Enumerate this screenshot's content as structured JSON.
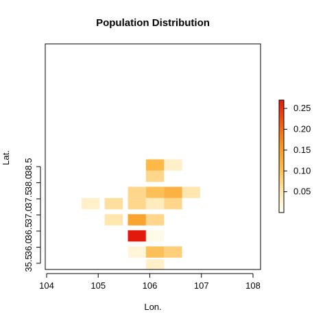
{
  "chart_data": {
    "type": "heatmap",
    "title": "Population Distribution",
    "xlabel": "Lon.",
    "ylabel": "Lat.",
    "xlim": [
      104,
      108
    ],
    "ylim": [
      35.45,
      38.85
    ],
    "x_ticks": [
      "104",
      "105",
      "106",
      "107",
      "108"
    ],
    "y_ticks": [
      "35.5",
      "36.0",
      "36.5",
      "37.0",
      "37.5",
      "38.0",
      "38.5"
    ],
    "cell_size": {
      "lon": 0.35,
      "lat": 0.35
    },
    "cells": [
      {
        "lon": 104.85,
        "lat": 37.35,
        "value": 0.03
      },
      {
        "lon": 105.3,
        "lat": 37.35,
        "value": 0.06
      },
      {
        "lon": 105.3,
        "lat": 36.85,
        "value": 0.05
      },
      {
        "lon": 105.75,
        "lat": 37.35,
        "value": 0.07
      },
      {
        "lon": 105.75,
        "lat": 37.7,
        "value": 0.07
      },
      {
        "lon": 105.75,
        "lat": 36.85,
        "value": 0.14
      },
      {
        "lon": 105.75,
        "lat": 36.35,
        "value": 0.27
      },
      {
        "lon": 105.75,
        "lat": 35.85,
        "value": 0.02
      },
      {
        "lon": 106.1,
        "lat": 38.55,
        "value": 0.11
      },
      {
        "lon": 106.1,
        "lat": 38.2,
        "value": 0.07
      },
      {
        "lon": 106.1,
        "lat": 37.7,
        "value": 0.1
      },
      {
        "lon": 106.1,
        "lat": 37.35,
        "value": 0.04
      },
      {
        "lon": 106.1,
        "lat": 36.85,
        "value": 0.07
      },
      {
        "lon": 106.1,
        "lat": 36.35,
        "value": 0.01
      },
      {
        "lon": 106.1,
        "lat": 35.85,
        "value": 0.1
      },
      {
        "lon": 106.1,
        "lat": 35.45,
        "value": 0.03
      },
      {
        "lon": 106.45,
        "lat": 38.55,
        "value": 0.03
      },
      {
        "lon": 106.45,
        "lat": 37.7,
        "value": 0.12
      },
      {
        "lon": 106.45,
        "lat": 37.35,
        "value": 0.07
      },
      {
        "lon": 106.45,
        "lat": 35.85,
        "value": 0.08
      },
      {
        "lon": 106.8,
        "lat": 37.7,
        "value": 0.05
      }
    ],
    "legend": {
      "min": 0.0,
      "max": 0.27,
      "ticks": [
        "0.05",
        "0.10",
        "0.15",
        "0.20",
        "0.25"
      ],
      "tick_values": [
        0.05,
        0.1,
        0.15,
        0.2,
        0.25
      ],
      "placement": "right",
      "colors": [
        "#fffff5",
        "#ffe4a8",
        "#fdb94a",
        "#f59520",
        "#f05a10",
        "#e21a0c"
      ]
    },
    "grid": false
  }
}
